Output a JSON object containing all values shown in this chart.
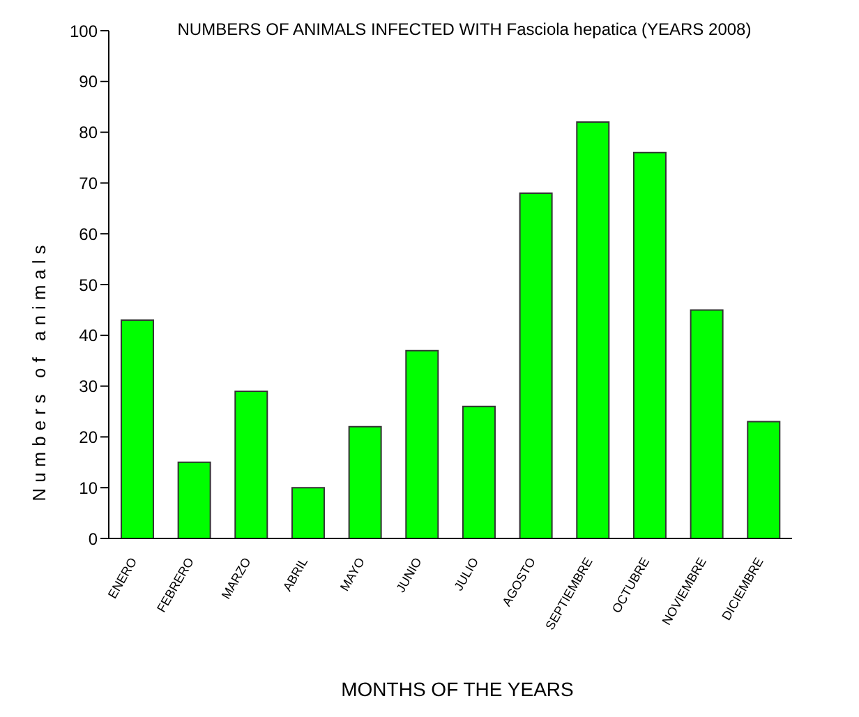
{
  "chart_data": {
    "type": "bar",
    "title": "NUMBERS OF ANIMALS INFECTED WITH Fasciola hepatica (YEARS 2008)",
    "xlabel": "MONTHS OF THE YEARS",
    "ylabel": "Numbers of animals",
    "categories": [
      "ENERO",
      "FEBRERO",
      "MARZO",
      "ABRIL",
      "MAYO",
      "JUNIO",
      "JULIO",
      "AGOSTO",
      "SEPTIEMBRE",
      "OCTUBRE",
      "NOVIEMBRE",
      "DICIEMBRE"
    ],
    "values": [
      43,
      15,
      29,
      10,
      22,
      37,
      26,
      68,
      82,
      76,
      45,
      23
    ],
    "color": "#00ff00",
    "ylim": [
      0,
      100
    ],
    "yticks": [
      0,
      10,
      20,
      30,
      40,
      50,
      60,
      70,
      80,
      90,
      100
    ],
    "grid": false
  }
}
